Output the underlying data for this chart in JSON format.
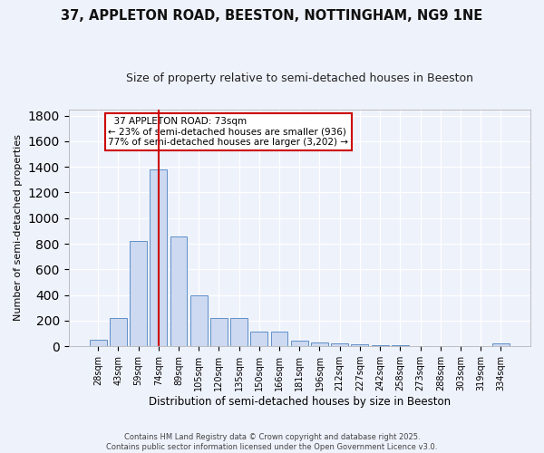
{
  "title1": "37, APPLETON ROAD, BEESTON, NOTTINGHAM, NG9 1NE",
  "title2": "Size of property relative to semi-detached houses in Beeston",
  "xlabel": "Distribution of semi-detached houses by size in Beeston",
  "ylabel": "Number of semi-detached properties",
  "bar_labels": [
    "28sqm",
    "43sqm",
    "59sqm",
    "74sqm",
    "89sqm",
    "105sqm",
    "120sqm",
    "135sqm",
    "150sqm",
    "166sqm",
    "181sqm",
    "196sqm",
    "212sqm",
    "227sqm",
    "242sqm",
    "258sqm",
    "273sqm",
    "288sqm",
    "303sqm",
    "319sqm",
    "334sqm"
  ],
  "bar_values": [
    50,
    220,
    825,
    1380,
    860,
    395,
    220,
    220,
    115,
    115,
    45,
    30,
    20,
    15,
    10,
    10,
    5,
    5,
    5,
    5,
    20
  ],
  "bar_color": "#ccd9f0",
  "bar_edge_color": "#6090c8",
  "vline_x": 3.5,
  "vline_color": "#cc0000",
  "annotation_text": "  37 APPLETON ROAD: 73sqm\n← 23% of semi-detached houses are smaller (936)\n77% of semi-detached houses are larger (3,202) →",
  "annotation_box_color": "#ffffff",
  "annotation_box_edge": "#cc0000",
  "ylim": [
    0,
    1850
  ],
  "yticks": [
    0,
    200,
    400,
    600,
    800,
    1000,
    1200,
    1400,
    1600,
    1800
  ],
  "footer1": "Contains HM Land Registry data © Crown copyright and database right 2025.",
  "footer2": "Contains public sector information licensed under the Open Government Licence v3.0.",
  "bg_color": "#eef2fb",
  "grid_color": "#ffffff",
  "title1_fontsize": 10.5,
  "title2_fontsize": 9
}
